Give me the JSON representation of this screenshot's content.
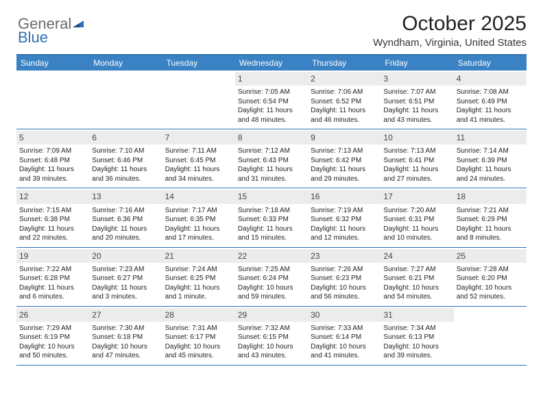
{
  "logo": {
    "general": "General",
    "blue": "Blue"
  },
  "title": "October 2025",
  "location": "Wyndham, Virginia, United States",
  "colors": {
    "header_bg": "#3b82c4",
    "border": "#2d6fb5",
    "daynum_bg": "#ececec",
    "logo_gray": "#6b6b6b",
    "logo_blue": "#2d6fb5",
    "text": "#222222",
    "background": "#ffffff"
  },
  "day_headers": [
    "Sunday",
    "Monday",
    "Tuesday",
    "Wednesday",
    "Thursday",
    "Friday",
    "Saturday"
  ],
  "weeks": [
    [
      {
        "n": "",
        "sr": "",
        "ss": "",
        "dl": ""
      },
      {
        "n": "",
        "sr": "",
        "ss": "",
        "dl": ""
      },
      {
        "n": "",
        "sr": "",
        "ss": "",
        "dl": ""
      },
      {
        "n": "1",
        "sr": "Sunrise: 7:05 AM",
        "ss": "Sunset: 6:54 PM",
        "dl": "Daylight: 11 hours and 48 minutes."
      },
      {
        "n": "2",
        "sr": "Sunrise: 7:06 AM",
        "ss": "Sunset: 6:52 PM",
        "dl": "Daylight: 11 hours and 46 minutes."
      },
      {
        "n": "3",
        "sr": "Sunrise: 7:07 AM",
        "ss": "Sunset: 6:51 PM",
        "dl": "Daylight: 11 hours and 43 minutes."
      },
      {
        "n": "4",
        "sr": "Sunrise: 7:08 AM",
        "ss": "Sunset: 6:49 PM",
        "dl": "Daylight: 11 hours and 41 minutes."
      }
    ],
    [
      {
        "n": "5",
        "sr": "Sunrise: 7:09 AM",
        "ss": "Sunset: 6:48 PM",
        "dl": "Daylight: 11 hours and 39 minutes."
      },
      {
        "n": "6",
        "sr": "Sunrise: 7:10 AM",
        "ss": "Sunset: 6:46 PM",
        "dl": "Daylight: 11 hours and 36 minutes."
      },
      {
        "n": "7",
        "sr": "Sunrise: 7:11 AM",
        "ss": "Sunset: 6:45 PM",
        "dl": "Daylight: 11 hours and 34 minutes."
      },
      {
        "n": "8",
        "sr": "Sunrise: 7:12 AM",
        "ss": "Sunset: 6:43 PM",
        "dl": "Daylight: 11 hours and 31 minutes."
      },
      {
        "n": "9",
        "sr": "Sunrise: 7:13 AM",
        "ss": "Sunset: 6:42 PM",
        "dl": "Daylight: 11 hours and 29 minutes."
      },
      {
        "n": "10",
        "sr": "Sunrise: 7:13 AM",
        "ss": "Sunset: 6:41 PM",
        "dl": "Daylight: 11 hours and 27 minutes."
      },
      {
        "n": "11",
        "sr": "Sunrise: 7:14 AM",
        "ss": "Sunset: 6:39 PM",
        "dl": "Daylight: 11 hours and 24 minutes."
      }
    ],
    [
      {
        "n": "12",
        "sr": "Sunrise: 7:15 AM",
        "ss": "Sunset: 6:38 PM",
        "dl": "Daylight: 11 hours and 22 minutes."
      },
      {
        "n": "13",
        "sr": "Sunrise: 7:16 AM",
        "ss": "Sunset: 6:36 PM",
        "dl": "Daylight: 11 hours and 20 minutes."
      },
      {
        "n": "14",
        "sr": "Sunrise: 7:17 AM",
        "ss": "Sunset: 6:35 PM",
        "dl": "Daylight: 11 hours and 17 minutes."
      },
      {
        "n": "15",
        "sr": "Sunrise: 7:18 AM",
        "ss": "Sunset: 6:33 PM",
        "dl": "Daylight: 11 hours and 15 minutes."
      },
      {
        "n": "16",
        "sr": "Sunrise: 7:19 AM",
        "ss": "Sunset: 6:32 PM",
        "dl": "Daylight: 11 hours and 12 minutes."
      },
      {
        "n": "17",
        "sr": "Sunrise: 7:20 AM",
        "ss": "Sunset: 6:31 PM",
        "dl": "Daylight: 11 hours and 10 minutes."
      },
      {
        "n": "18",
        "sr": "Sunrise: 7:21 AM",
        "ss": "Sunset: 6:29 PM",
        "dl": "Daylight: 11 hours and 8 minutes."
      }
    ],
    [
      {
        "n": "19",
        "sr": "Sunrise: 7:22 AM",
        "ss": "Sunset: 6:28 PM",
        "dl": "Daylight: 11 hours and 6 minutes."
      },
      {
        "n": "20",
        "sr": "Sunrise: 7:23 AM",
        "ss": "Sunset: 6:27 PM",
        "dl": "Daylight: 11 hours and 3 minutes."
      },
      {
        "n": "21",
        "sr": "Sunrise: 7:24 AM",
        "ss": "Sunset: 6:25 PM",
        "dl": "Daylight: 11 hours and 1 minute."
      },
      {
        "n": "22",
        "sr": "Sunrise: 7:25 AM",
        "ss": "Sunset: 6:24 PM",
        "dl": "Daylight: 10 hours and 59 minutes."
      },
      {
        "n": "23",
        "sr": "Sunrise: 7:26 AM",
        "ss": "Sunset: 6:23 PM",
        "dl": "Daylight: 10 hours and 56 minutes."
      },
      {
        "n": "24",
        "sr": "Sunrise: 7:27 AM",
        "ss": "Sunset: 6:21 PM",
        "dl": "Daylight: 10 hours and 54 minutes."
      },
      {
        "n": "25",
        "sr": "Sunrise: 7:28 AM",
        "ss": "Sunset: 6:20 PM",
        "dl": "Daylight: 10 hours and 52 minutes."
      }
    ],
    [
      {
        "n": "26",
        "sr": "Sunrise: 7:29 AM",
        "ss": "Sunset: 6:19 PM",
        "dl": "Daylight: 10 hours and 50 minutes."
      },
      {
        "n": "27",
        "sr": "Sunrise: 7:30 AM",
        "ss": "Sunset: 6:18 PM",
        "dl": "Daylight: 10 hours and 47 minutes."
      },
      {
        "n": "28",
        "sr": "Sunrise: 7:31 AM",
        "ss": "Sunset: 6:17 PM",
        "dl": "Daylight: 10 hours and 45 minutes."
      },
      {
        "n": "29",
        "sr": "Sunrise: 7:32 AM",
        "ss": "Sunset: 6:15 PM",
        "dl": "Daylight: 10 hours and 43 minutes."
      },
      {
        "n": "30",
        "sr": "Sunrise: 7:33 AM",
        "ss": "Sunset: 6:14 PM",
        "dl": "Daylight: 10 hours and 41 minutes."
      },
      {
        "n": "31",
        "sr": "Sunrise: 7:34 AM",
        "ss": "Sunset: 6:13 PM",
        "dl": "Daylight: 10 hours and 39 minutes."
      },
      {
        "n": "",
        "sr": "",
        "ss": "",
        "dl": ""
      }
    ]
  ]
}
